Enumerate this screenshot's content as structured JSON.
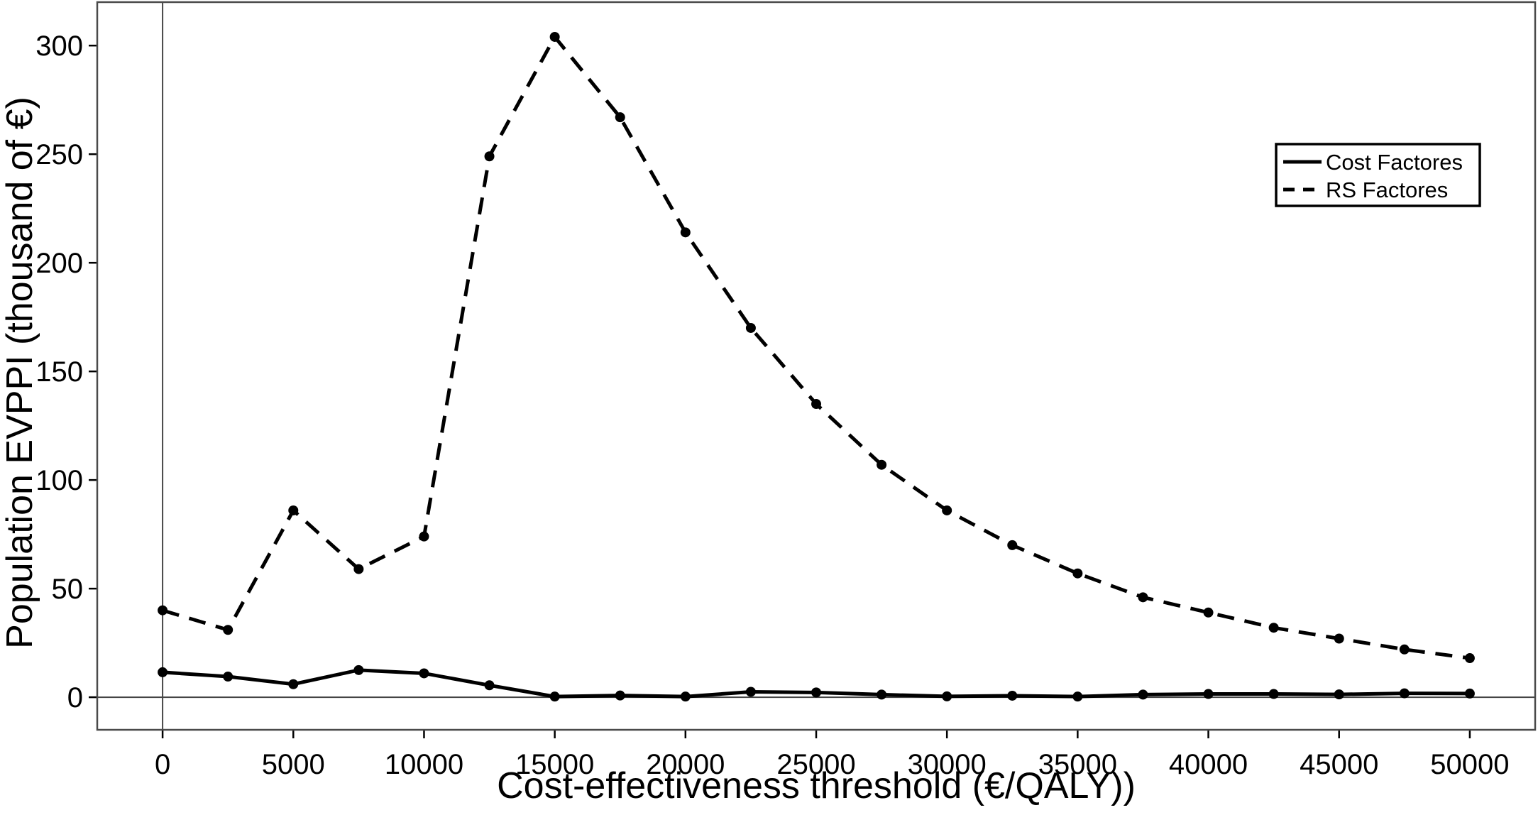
{
  "chart_data": {
    "type": "line",
    "title": "",
    "xlabel": "Cost-effectiveness threshold (€/QALY))",
    "ylabel": "Population EVPPI (thousand of €)",
    "x": [
      0,
      2500,
      5000,
      7500,
      10000,
      12500,
      15000,
      17500,
      20000,
      22500,
      25000,
      27500,
      30000,
      32500,
      35000,
      37500,
      40000,
      42500,
      45000,
      47500,
      50000
    ],
    "series": [
      {
        "name": "Cost Factores",
        "line_style": "solid",
        "values": [
          11.5,
          9.5,
          6,
          12.5,
          11,
          5.5,
          0.3,
          0.8,
          0.3,
          2.5,
          2.2,
          1.2,
          0.4,
          0.7,
          0.3,
          1.2,
          1.5,
          1.5,
          1.3,
          1.8,
          1.7
        ]
      },
      {
        "name": "RS Factores",
        "line_style": "dashed",
        "values": [
          40,
          31,
          86,
          59,
          74,
          249,
          304,
          267,
          214,
          170,
          135,
          107,
          86,
          70,
          57,
          46,
          39,
          32,
          27,
          22,
          18
        ]
      }
    ],
    "x_ticks": [
      0,
      5000,
      10000,
      15000,
      20000,
      25000,
      30000,
      35000,
      40000,
      45000,
      50000
    ],
    "y_ticks": [
      0,
      50,
      100,
      150,
      200,
      250,
      300
    ],
    "xlim": [
      -2500,
      52500
    ],
    "ylim": [
      -15,
      320
    ],
    "grid": false,
    "legend_position": "top-right",
    "point_marker": "filled-circle",
    "colors": {
      "series": "#000000",
      "axis": "#000000",
      "panel_border": "#4a4a4a",
      "refline": "#454545",
      "background": "#ffffff"
    }
  }
}
